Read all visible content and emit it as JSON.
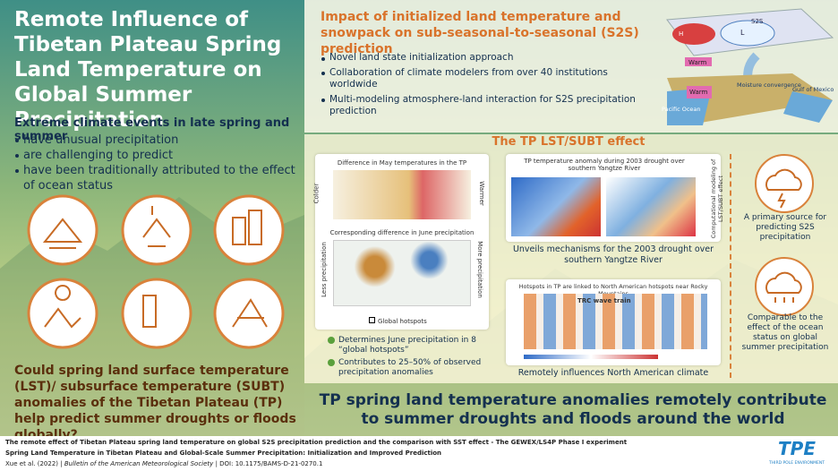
{
  "left": {
    "title": "Remote Influence of Tibetan Plateau Spring Land Temperature on Global Summer Precipitation",
    "subtitle": "Extreme climate events in late spring and summer",
    "bullets": [
      "have unusual precipitation",
      "are challenging to predict",
      "have been traditionally attributed to the effect of ocean status"
    ],
    "question": "Could spring land surface temperature (LST)/ subsurface temperature (SUBT) anomalies of the Tibetan Plateau (TP) help predict summer droughts or floods globally?"
  },
  "impact": {
    "title": "Impact of initialized land temperature and snowpack on sub-seasonal-to-seasonal (S2S) prediction",
    "bullets": [
      "Novel land state initialization approach",
      "Collaboration of climate modelers from over 40 institutions worldwide",
      "Multi-modeling atmosphere-land interaction for S2S precipitation prediction"
    ],
    "diagram": {
      "high": "H",
      "low": "L",
      "warm_top": "Warm",
      "warm_bottom": "Warm",
      "moisture": "Moisture convergence",
      "gulf": "Gulf of Mexico",
      "pacific": "Pacific Ocean",
      "s2s": "S2S"
    }
  },
  "effect": {
    "title": "The TP LST/SUBT effect",
    "panel1": {
      "map_title_top": "Difference in May temperatures in the TP",
      "colder": "Colder",
      "warmer": "Warmer",
      "map_title_bottom": "Corresponding difference in June precipitation",
      "less": "Less precipitation",
      "more": "More precipitation",
      "legend": "Global hotspots",
      "bullets": [
        "Determines June precipitation in 8 “global hotspots”",
        "Contributes to 25–50% of observed precipitation anomalies"
      ]
    },
    "panel2": {
      "map_title": "TP temperature anomaly during 2003 drought over southern Yangtze River",
      "side": "Computational modeling of LST/SUBT effect",
      "caption": "Unveils mechanisms for the 2003 drought over southern Yangtze River"
    },
    "panel3": {
      "map_title": "Hotspots in TP are linked to North American hotspots near Rocky Mountains",
      "wave": "TRC wave train",
      "caption": "Remotely influences North American climate"
    },
    "right": [
      "A primary source for predicting S2S precipitation",
      "Comparable to the effect of the ocean status on global summer precipitation"
    ]
  },
  "banner": "TP spring land temperature anomalies remotely contribute to summer droughts and floods around the world",
  "footer": {
    "line1": "The remote effect of Tibetan Plateau spring land temperature on global S2S precipitation prediction and the comparison with SST effect - The GEWEX/LS4P Phase I experiment",
    "line2": "Spring Land Temperature in Tibetan Plateau and Global-Scale Summer Precipitation: Initialization and Improved Prediction",
    "authors": "Xue et al. (2022) |",
    "journal": "Bulletin of the American Meteorological Society",
    "doi": "| DOI: 10.1175/BAMS-D-21-0270.1",
    "logo": "TPE",
    "logo_sub": "THIRD POLE ENVIRONMENT"
  }
}
